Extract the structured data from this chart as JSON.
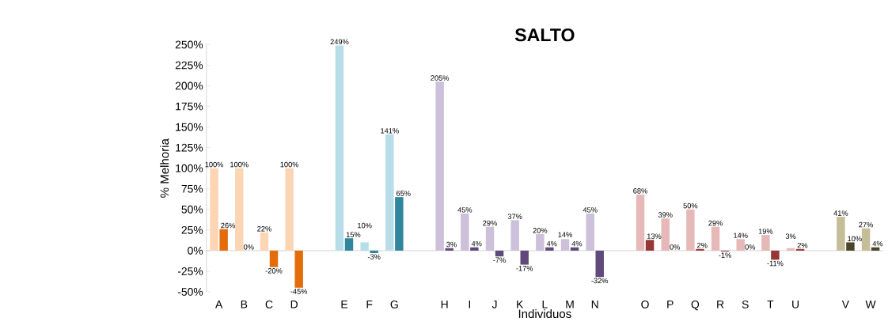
{
  "chart_data": {
    "type": "bar",
    "title": "SALTO",
    "xlabel": "Individuos",
    "ylabel": "% Melhoria",
    "categories": [
      "A",
      "B",
      "C",
      "D",
      null,
      "E",
      "F",
      "G",
      null,
      "H",
      "I",
      "J",
      "K",
      "L",
      "M",
      "N",
      null,
      "O",
      "P",
      "Q",
      "R",
      "S",
      "T",
      "U",
      null,
      "V",
      "W"
    ],
    "series": [
      {
        "colors": [
          "#fcd5b5",
          "#fcd5b5",
          "#fcd5b5",
          "#fcd5b5",
          null,
          "#b7dee8",
          "#b7dee8",
          "#b7dee8",
          null,
          "#ccc0da",
          "#ccc0da",
          "#ccc0da",
          "#ccc0da",
          "#ccc0da",
          "#ccc0da",
          "#ccc0da",
          null,
          "#e6b9b8",
          "#e6b9b8",
          "#e6b9b8",
          "#e6b9b8",
          "#e6b9b8",
          "#e6b9b8",
          "#e6b9b8",
          null,
          "#c4bd97",
          "#c4bd97"
        ],
        "values": [
          100,
          100,
          22,
          100,
          null,
          249,
          10,
          141,
          null,
          205,
          45,
          29,
          37,
          20,
          14,
          45,
          null,
          68,
          39,
          50,
          29,
          14,
          19,
          3,
          null,
          41,
          27
        ],
        "value_labels": [
          "100%",
          "100%",
          "22%",
          "100%",
          null,
          "249%",
          "10%",
          "141%",
          null,
          "205%",
          "45%",
          "29%",
          "37%",
          "20%",
          "14%",
          "45%",
          null,
          "68%",
          "39%",
          "50%",
          "29%",
          "14%",
          "19%",
          "3%",
          null,
          "41%",
          "27%"
        ]
      },
      {
        "colors": [
          "#e46c0a",
          "#e46c0a",
          "#e46c0a",
          "#e46c0a",
          null,
          "#31859c",
          "#31859c",
          "#31859c",
          null,
          "#604a7b",
          "#604a7b",
          "#604a7b",
          "#604a7b",
          "#604a7b",
          "#604a7b",
          "#604a7b",
          null,
          "#953735",
          "#953735",
          "#953735",
          "#953735",
          "#953735",
          "#953735",
          "#953735",
          null,
          "#4a452a",
          "#4a452a"
        ],
        "values": [
          26,
          0,
          -20,
          -45,
          null,
          15,
          -3,
          65,
          null,
          3,
          4,
          -7,
          -17,
          4,
          4,
          -32,
          null,
          13,
          0,
          2,
          -1,
          0,
          -11,
          2,
          null,
          10,
          4
        ],
        "value_labels": [
          "26%",
          "0%",
          "-20%",
          "-45%",
          null,
          "15%",
          "-3%",
          "65%",
          null,
          "3%",
          "4%",
          "-7%",
          "-17%",
          "4%",
          "4%",
          "-32%",
          null,
          "13%",
          "0%",
          "2%",
          "-1%",
          "0%",
          "-11%",
          "2%",
          null,
          "10%",
          "4%"
        ]
      }
    ],
    "ylim": [
      -50,
      250
    ],
    "yticks": [
      {
        "value": -50,
        "label": "-50%"
      },
      {
        "value": -25,
        "label": "-25%"
      },
      {
        "value": 0,
        "label": "0%"
      },
      {
        "value": 25,
        "label": "25%"
      },
      {
        "value": 50,
        "label": "50%"
      },
      {
        "value": 75,
        "label": "75%"
      },
      {
        "value": 100,
        "label": "100%"
      },
      {
        "value": 125,
        "label": "125%"
      },
      {
        "value": 150,
        "label": "150%"
      },
      {
        "value": 175,
        "label": "175%"
      },
      {
        "value": 200,
        "label": "200%"
      },
      {
        "value": 225,
        "label": "225%"
      },
      {
        "value": 250,
        "label": "250%"
      }
    ]
  }
}
